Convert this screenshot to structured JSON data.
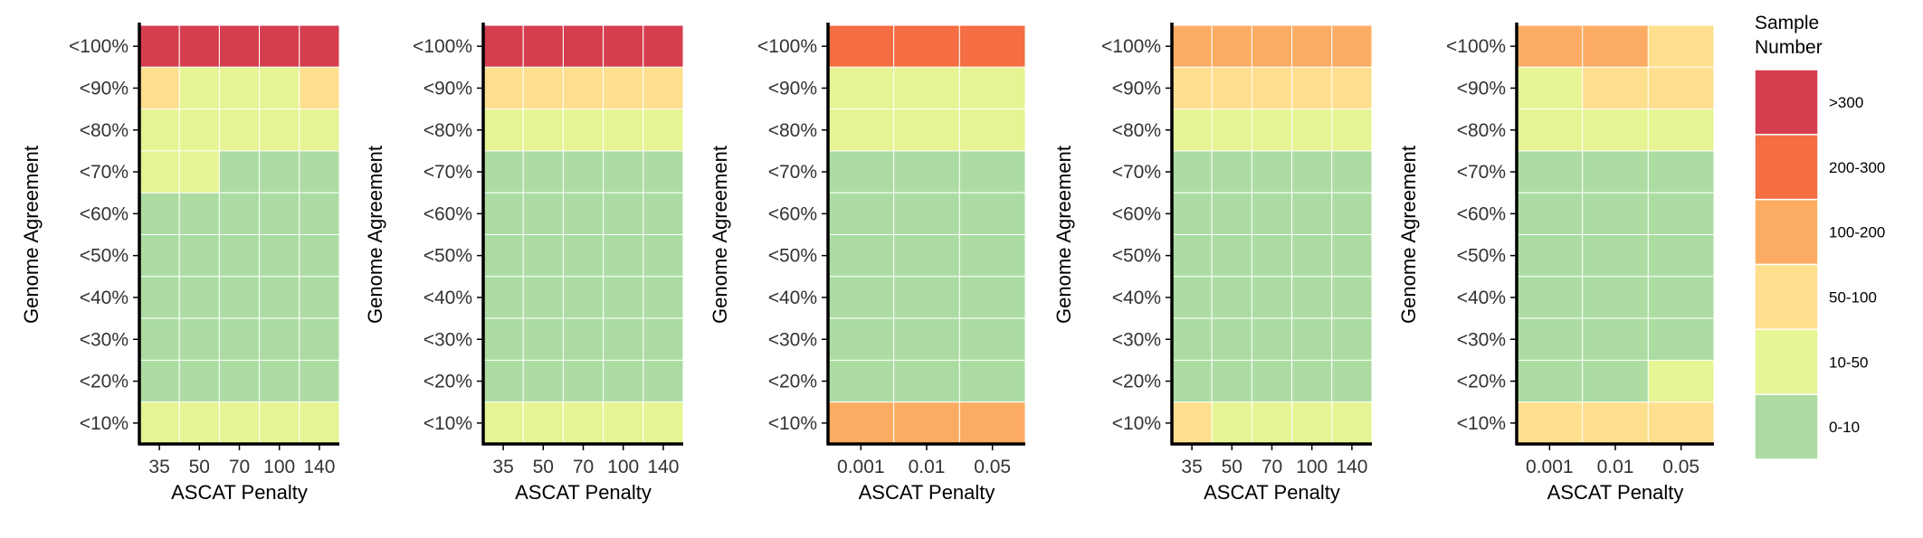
{
  "palette": {
    "0-10": "#acdca2",
    "10-50": "#e6f494",
    "50-100": "#fedf8e",
    "100-200": "#fcac62",
    "200-300": "#f46d43",
    ">300": "#d53e4f"
  },
  "legend": {
    "title_line1": "Sample",
    "title_line2": "Number",
    "items": [
      ">300",
      "200-300",
      "100-200",
      "50-100",
      "10-50",
      "0-10"
    ]
  },
  "chart_data": [
    {
      "type": "heatmap",
      "xlabel": "ASCAT Penalty",
      "ylabel": "Genome Agreement",
      "x": [
        "35",
        "50",
        "70",
        "100",
        "140"
      ],
      "y": [
        "<100%",
        "<90%",
        "<80%",
        "<70%",
        "<60%",
        "<50%",
        "<40%",
        "<30%",
        "<20%",
        "<10%"
      ],
      "cells": [
        [
          ">300",
          ">300",
          ">300",
          ">300",
          ">300"
        ],
        [
          "50-100",
          "10-50",
          "10-50",
          "10-50",
          "50-100"
        ],
        [
          "10-50",
          "10-50",
          "10-50",
          "10-50",
          "10-50"
        ],
        [
          "10-50",
          "10-50",
          "0-10",
          "0-10",
          "0-10"
        ],
        [
          "0-10",
          "0-10",
          "0-10",
          "0-10",
          "0-10"
        ],
        [
          "0-10",
          "0-10",
          "0-10",
          "0-10",
          "0-10"
        ],
        [
          "0-10",
          "0-10",
          "0-10",
          "0-10",
          "0-10"
        ],
        [
          "0-10",
          "0-10",
          "0-10",
          "0-10",
          "0-10"
        ],
        [
          "0-10",
          "0-10",
          "0-10",
          "0-10",
          "0-10"
        ],
        [
          "10-50",
          "10-50",
          "10-50",
          "10-50",
          "10-50"
        ]
      ]
    },
    {
      "type": "heatmap",
      "xlabel": "ASCAT Penalty",
      "ylabel": "Genome Agreement",
      "x": [
        "35",
        "50",
        "70",
        "100",
        "140"
      ],
      "y": [
        "<100%",
        "<90%",
        "<80%",
        "<70%",
        "<60%",
        "<50%",
        "<40%",
        "<30%",
        "<20%",
        "<10%"
      ],
      "cells": [
        [
          ">300",
          ">300",
          ">300",
          ">300",
          ">300"
        ],
        [
          "50-100",
          "50-100",
          "50-100",
          "50-100",
          "50-100"
        ],
        [
          "10-50",
          "10-50",
          "10-50",
          "10-50",
          "10-50"
        ],
        [
          "0-10",
          "0-10",
          "0-10",
          "0-10",
          "0-10"
        ],
        [
          "0-10",
          "0-10",
          "0-10",
          "0-10",
          "0-10"
        ],
        [
          "0-10",
          "0-10",
          "0-10",
          "0-10",
          "0-10"
        ],
        [
          "0-10",
          "0-10",
          "0-10",
          "0-10",
          "0-10"
        ],
        [
          "0-10",
          "0-10",
          "0-10",
          "0-10",
          "0-10"
        ],
        [
          "0-10",
          "0-10",
          "0-10",
          "0-10",
          "0-10"
        ],
        [
          "10-50",
          "10-50",
          "10-50",
          "10-50",
          "10-50"
        ]
      ]
    },
    {
      "type": "heatmap",
      "xlabel": "ASCAT Penalty",
      "ylabel": "Genome Agreement",
      "x": [
        "0.001",
        "0.01",
        "0.05"
      ],
      "y": [
        "<100%",
        "<90%",
        "<80%",
        "<70%",
        "<60%",
        "<50%",
        "<40%",
        "<30%",
        "<20%",
        "<10%"
      ],
      "cells": [
        [
          "200-300",
          "200-300",
          "200-300"
        ],
        [
          "10-50",
          "10-50",
          "10-50"
        ],
        [
          "10-50",
          "10-50",
          "10-50"
        ],
        [
          "0-10",
          "0-10",
          "0-10"
        ],
        [
          "0-10",
          "0-10",
          "0-10"
        ],
        [
          "0-10",
          "0-10",
          "0-10"
        ],
        [
          "0-10",
          "0-10",
          "0-10"
        ],
        [
          "0-10",
          "0-10",
          "0-10"
        ],
        [
          "0-10",
          "0-10",
          "0-10"
        ],
        [
          "100-200",
          "100-200",
          "100-200"
        ]
      ]
    },
    {
      "type": "heatmap",
      "xlabel": "ASCAT Penalty",
      "ylabel": "Genome Agreement",
      "x": [
        "35",
        "50",
        "70",
        "100",
        "140"
      ],
      "y": [
        "<100%",
        "<90%",
        "<80%",
        "<70%",
        "<60%",
        "<50%",
        "<40%",
        "<30%",
        "<20%",
        "<10%"
      ],
      "cells": [
        [
          "100-200",
          "100-200",
          "100-200",
          "100-200",
          "100-200"
        ],
        [
          "50-100",
          "50-100",
          "50-100",
          "50-100",
          "50-100"
        ],
        [
          "10-50",
          "10-50",
          "10-50",
          "10-50",
          "10-50"
        ],
        [
          "0-10",
          "0-10",
          "0-10",
          "0-10",
          "0-10"
        ],
        [
          "0-10",
          "0-10",
          "0-10",
          "0-10",
          "0-10"
        ],
        [
          "0-10",
          "0-10",
          "0-10",
          "0-10",
          "0-10"
        ],
        [
          "0-10",
          "0-10",
          "0-10",
          "0-10",
          "0-10"
        ],
        [
          "0-10",
          "0-10",
          "0-10",
          "0-10",
          "0-10"
        ],
        [
          "0-10",
          "0-10",
          "0-10",
          "0-10",
          "0-10"
        ],
        [
          "50-100",
          "10-50",
          "10-50",
          "10-50",
          "10-50"
        ]
      ]
    },
    {
      "type": "heatmap",
      "xlabel": "ASCAT Penalty",
      "ylabel": "Genome Agreement",
      "x": [
        "0.001",
        "0.01",
        "0.05"
      ],
      "y": [
        "<100%",
        "<90%",
        "<80%",
        "<70%",
        "<60%",
        "<50%",
        "<40%",
        "<30%",
        "<20%",
        "<10%"
      ],
      "cells": [
        [
          "100-200",
          "100-200",
          "50-100"
        ],
        [
          "10-50",
          "50-100",
          "50-100"
        ],
        [
          "10-50",
          "10-50",
          "10-50"
        ],
        [
          "0-10",
          "0-10",
          "0-10"
        ],
        [
          "0-10",
          "0-10",
          "0-10"
        ],
        [
          "0-10",
          "0-10",
          "0-10"
        ],
        [
          "0-10",
          "0-10",
          "0-10"
        ],
        [
          "0-10",
          "0-10",
          "0-10"
        ],
        [
          "0-10",
          "0-10",
          "10-50"
        ],
        [
          "50-100",
          "50-100",
          "50-100"
        ]
      ]
    }
  ]
}
